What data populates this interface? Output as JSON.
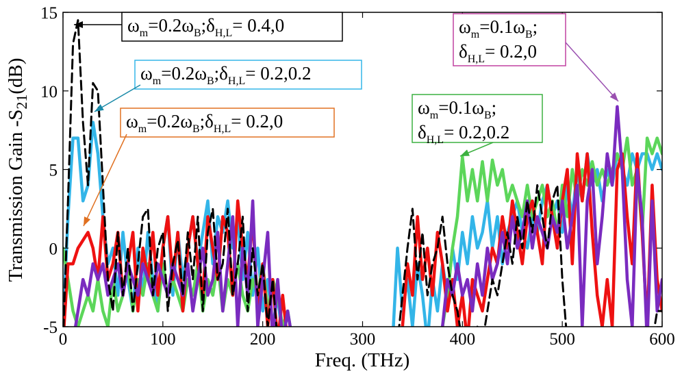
{
  "chart_data": {
    "type": "line",
    "xlabel": "Freq. (THz)",
    "ylabel_parts": [
      "Transmission Gain -S",
      "21",
      "(dB)"
    ],
    "xlim": [
      0,
      600
    ],
    "ylim": [
      -5,
      15
    ],
    "xticks": [
      0,
      100,
      200,
      300,
      400,
      500,
      600
    ],
    "yticks": [
      -5,
      0,
      5,
      10,
      15
    ],
    "grid": false,
    "x": [
      0,
      5,
      10,
      15,
      20,
      25,
      30,
      35,
      40,
      45,
      50,
      55,
      60,
      65,
      70,
      75,
      80,
      85,
      90,
      95,
      100,
      105,
      110,
      115,
      120,
      125,
      130,
      135,
      140,
      145,
      150,
      155,
      160,
      165,
      170,
      175,
      180,
      185,
      190,
      195,
      200,
      205,
      210,
      215,
      220,
      225,
      230,
      235,
      240,
      245,
      250,
      255,
      260,
      265,
      270,
      275,
      280,
      285,
      290,
      295,
      300,
      305,
      310,
      315,
      320,
      325,
      330,
      335,
      340,
      345,
      350,
      355,
      360,
      365,
      370,
      375,
      380,
      385,
      390,
      395,
      400,
      405,
      410,
      415,
      420,
      425,
      430,
      435,
      440,
      445,
      450,
      455,
      460,
      465,
      470,
      475,
      480,
      485,
      490,
      495,
      500,
      505,
      510,
      515,
      520,
      525,
      530,
      535,
      540,
      545,
      550,
      555,
      560,
      565,
      570,
      575,
      580,
      585,
      590,
      595,
      600
    ],
    "series": [
      {
        "color": "#33b5e8",
        "dash": false,
        "values": [
          -5,
          2,
          7,
          7,
          3,
          4,
          8,
          6,
          2,
          -1,
          0,
          -3,
          1,
          -2,
          -4,
          0,
          -3,
          1,
          -2,
          -4,
          0,
          2,
          -3,
          1,
          -2,
          0,
          2,
          -1,
          1,
          3,
          -1,
          2,
          1,
          3,
          0,
          2,
          -2,
          1,
          -3,
          0,
          -4,
          -2,
          -5,
          -3,
          -6,
          -4,
          -6,
          -6,
          null,
          null,
          null,
          null,
          null,
          null,
          null,
          null,
          null,
          null,
          null,
          null,
          null,
          null,
          null,
          null,
          null,
          null,
          -6,
          0,
          -4,
          -2,
          -5,
          -1,
          -3,
          -6,
          -2,
          -4,
          -1,
          -3,
          0,
          -2,
          1,
          -1,
          2,
          0,
          1,
          3,
          0,
          2,
          -1,
          1,
          2,
          3,
          1,
          0,
          2,
          1,
          3,
          4,
          2,
          3,
          1,
          4,
          2,
          5,
          3,
          6,
          4,
          5,
          3,
          5,
          4,
          6,
          5,
          4,
          6,
          5,
          6,
          6,
          5,
          6,
          5
        ]
      },
      {
        "color": "#5cd65a",
        "dash": false,
        "values": [
          0,
          -2,
          -4,
          -5,
          -4,
          -3,
          -4,
          -2,
          -4,
          -5,
          -2,
          -4,
          -3,
          -1,
          -4,
          -2,
          -3,
          -1,
          -3,
          -4,
          -1,
          -3,
          -2,
          -3,
          -4,
          -2,
          -3,
          -1,
          -4,
          -2,
          -3,
          -1,
          -4,
          -2,
          -3,
          -1,
          -3,
          -4,
          -2,
          -3,
          -1,
          -4,
          -2,
          -3,
          -5,
          -4,
          -6,
          -6,
          null,
          null,
          null,
          null,
          null,
          null,
          null,
          null,
          null,
          null,
          null,
          null,
          null,
          null,
          null,
          null,
          null,
          null,
          -6,
          -6,
          -6,
          -6,
          -6,
          -6,
          -6,
          -6,
          -6,
          -6,
          -5,
          -3,
          0,
          2,
          5.8,
          3,
          5,
          3,
          5.5,
          3,
          5.6,
          4,
          5,
          3,
          4,
          3,
          2,
          4,
          2,
          3,
          4,
          2,
          3,
          1,
          4,
          2,
          5,
          3,
          5,
          4,
          5.5,
          4,
          5,
          4,
          5,
          6,
          5,
          7,
          4,
          5,
          1,
          7,
          6,
          7,
          6
        ]
      },
      {
        "color": "#ee1111",
        "dash": false,
        "values": [
          -6,
          -1,
          -1,
          0,
          0.5,
          1,
          0,
          -2,
          2,
          -2,
          -1,
          1,
          -3,
          -1,
          1,
          -4,
          0,
          -2,
          1,
          -3,
          0,
          2,
          -2,
          1,
          -4,
          0,
          2,
          -1,
          -3,
          2,
          0,
          -2,
          2,
          1,
          -3,
          3,
          0,
          -2,
          2,
          -4,
          -1,
          -5,
          -2,
          -6,
          -3,
          -6,
          -6,
          -6,
          null,
          null,
          null,
          null,
          null,
          null,
          null,
          null,
          null,
          null,
          null,
          null,
          null,
          null,
          null,
          null,
          null,
          null,
          -6,
          -6,
          -5,
          -1,
          -3,
          2,
          -2,
          0,
          -3,
          1,
          -1,
          -4,
          -2,
          -5,
          -3,
          -6,
          -2,
          -3,
          -4,
          -2,
          0,
          -1,
          2,
          0,
          3,
          1,
          -1,
          2,
          3,
          1,
          -1,
          4,
          2,
          0,
          3,
          5,
          -1,
          6,
          3,
          6,
          1,
          -3,
          -5,
          -2,
          -5,
          5,
          6,
          2,
          -1,
          6,
          1,
          -5,
          4,
          -2,
          -4
        ]
      },
      {
        "color": "#7a2bbf",
        "dash": false,
        "values": [
          -6,
          -6,
          -6,
          -4,
          -2,
          -3,
          -1,
          -2,
          -1,
          -3,
          -2,
          -1,
          -3,
          -1,
          -2,
          -3,
          -1,
          -2,
          -3,
          -1,
          -2,
          -3,
          -1,
          -2,
          -3,
          -1,
          -4,
          -2,
          0,
          -3,
          -2,
          1,
          -4,
          -1,
          2,
          -5,
          0,
          -3,
          3,
          -5,
          -2,
          1,
          -6,
          -2,
          -6,
          -4,
          -6,
          -6,
          null,
          null,
          null,
          null,
          null,
          null,
          null,
          null,
          null,
          null,
          null,
          null,
          null,
          null,
          null,
          null,
          null,
          null,
          -6,
          -6,
          -6,
          -6,
          -6,
          -6,
          -6,
          -6,
          -6,
          -6,
          -5,
          -2,
          -3,
          -1,
          -3,
          -2,
          -4,
          -1,
          -3,
          0,
          -2,
          -1,
          1,
          -1,
          2,
          0,
          1,
          3,
          0,
          2,
          1,
          0,
          2,
          1,
          3,
          0,
          2,
          4,
          -5,
          3,
          5,
          -1,
          2,
          6,
          4,
          9,
          5,
          -2,
          -5,
          5,
          2,
          -6,
          3,
          -4,
          -2
        ]
      },
      {
        "color": "#000000",
        "dash": true,
        "values": [
          -6,
          3,
          13,
          14.5,
          8,
          4,
          10.5,
          10,
          4,
          -2,
          -4,
          1,
          -3,
          0,
          -4,
          -1,
          2,
          2.5,
          -3,
          0,
          1,
          -4,
          -1,
          0.5,
          -3,
          1,
          -2,
          2,
          -4,
          1,
          2.5,
          -2,
          -1,
          2.5,
          -3,
          -1,
          2,
          -4,
          0,
          -3,
          -1,
          -5,
          -2,
          -6,
          -6,
          -6,
          -6,
          -6,
          null,
          null,
          null,
          null,
          null,
          null,
          null,
          null,
          null,
          null,
          null,
          null,
          null,
          null,
          null,
          null,
          null,
          null,
          -6,
          -6,
          -3,
          0,
          2.5,
          -2,
          1,
          -3,
          -1,
          0,
          2,
          -1,
          -3,
          -4,
          -6,
          -6,
          -6,
          -5,
          -6,
          -4,
          -2,
          -3,
          -1,
          1,
          -1,
          2,
          0,
          3,
          1,
          4,
          2,
          0,
          3,
          4,
          -2,
          -6,
          -6,
          -6,
          -6,
          -6,
          -6,
          -6,
          -6,
          -6,
          -6,
          -6,
          -6,
          -6,
          -6,
          -6,
          -6,
          -6,
          -6,
          -4,
          -4
        ]
      }
    ],
    "annotations": [
      {
        "color": "#000000",
        "lines": [
          [
            "ω",
            "m",
            "=0.2ω",
            "B",
            ";δ",
            "H,L",
            "= 0.4,0"
          ]
        ]
      },
      {
        "color": "#33b5e8",
        "lines": [
          [
            "ω",
            "m",
            "=0.2ω",
            "B",
            ";δ",
            "H,L",
            "= 0.2,0.2"
          ]
        ]
      },
      {
        "color": "#e07020",
        "lines": [
          [
            "ω",
            "m",
            "=0.2ω",
            "B",
            ";δ",
            "H,L",
            "= 0.2,0"
          ]
        ]
      },
      {
        "color": "#c040a0",
        "lines": [
          [
            "ω",
            "m",
            "=0.1ω",
            "B",
            ";"
          ],
          [
            "δ",
            "H,L",
            "= 0.2,0"
          ]
        ]
      },
      {
        "color": "#3cb040",
        "lines": [
          [
            "ω",
            "m",
            "=0.1ω",
            "B",
            ";"
          ],
          [
            "δ",
            "H,L",
            "= 0.2,0.2"
          ]
        ]
      }
    ]
  }
}
